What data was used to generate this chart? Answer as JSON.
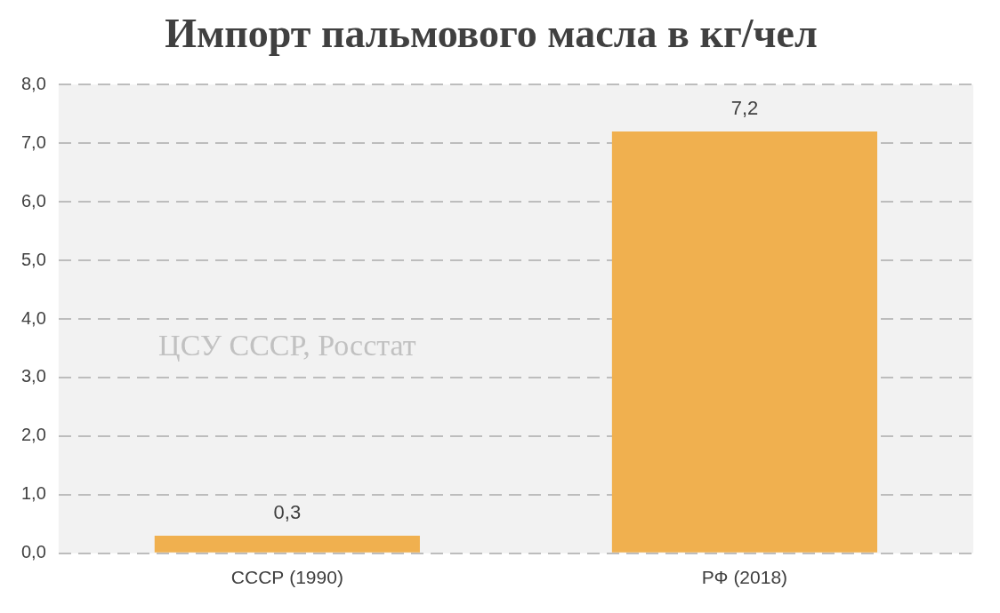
{
  "chart_data": {
    "type": "bar",
    "title": "Импорт пальмового масла в кг/чел",
    "categories": [
      "СССР (1990)",
      "РФ (2018)"
    ],
    "values": [
      0.3,
      7.2
    ],
    "color": "#f0b04f",
    "ylim": [
      0,
      8
    ],
    "yticks": [
      {
        "value": 0,
        "label": "0,0"
      },
      {
        "value": 1,
        "label": "1,0"
      },
      {
        "value": 2,
        "label": "2,0"
      },
      {
        "value": 3,
        "label": "3,0"
      },
      {
        "value": 4,
        "label": "4,0"
      },
      {
        "value": 5,
        "label": "5,0"
      },
      {
        "value": 6,
        "label": "6,0"
      },
      {
        "value": 7,
        "label": "7,0"
      },
      {
        "value": 8,
        "label": "8,0"
      }
    ],
    "value_labels": [
      "0,3",
      "7,2"
    ],
    "grid": "y",
    "line_style": "dashed",
    "legend": false,
    "annotations": [
      "ЦСУ СССР, Росстат"
    ]
  }
}
